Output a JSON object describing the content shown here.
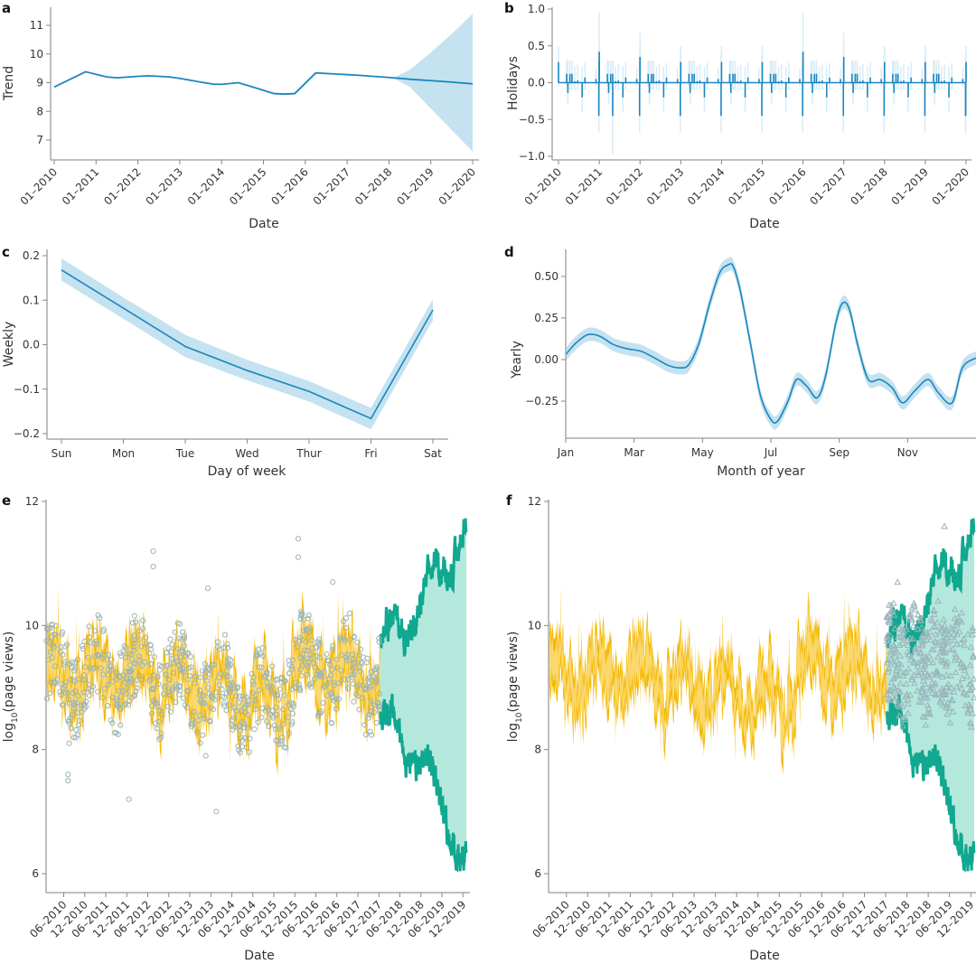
{
  "colors": {
    "component_line": "#1a86c0",
    "component_band": "#c5e2f0",
    "holiday_band": "#d8ecf6",
    "fit_edge": "#f5b800",
    "fit_band": "#fbdc7a",
    "forecast_edge": "#10a890",
    "forecast_band": "#b5e8dc",
    "observed_marker": "#9ab5bb"
  },
  "chart_data": [
    {
      "panel": "a",
      "type": "line",
      "title": "",
      "xlabel": "Date",
      "ylabel": "Trend",
      "x_ticks": [
        "01-2010",
        "01-2011",
        "01-2012",
        "01-2013",
        "01-2014",
        "01-2015",
        "01-2016",
        "01-2017",
        "01-2018",
        "01-2019",
        "01-2020"
      ],
      "y_ticks": [
        "7",
        "8",
        "9",
        "10",
        "11"
      ],
      "ylim": [
        6.3,
        11.6
      ],
      "xlim": [
        2010.0,
        2020.0
      ],
      "series": [
        {
          "name": "trend",
          "x": [
            2010.0,
            2010.75,
            2011.25,
            2011.5,
            2012.0,
            2012.25,
            2012.75,
            2013.0,
            2013.5,
            2013.8,
            2014.0,
            2014.4,
            2014.9,
            2015.25,
            2015.5,
            2015.75,
            2016.25,
            2016.75,
            2017.25,
            2018.0,
            2018.5,
            2019.0,
            2019.5,
            2020.0
          ],
          "y": [
            8.85,
            9.38,
            9.2,
            9.17,
            9.22,
            9.24,
            9.2,
            9.15,
            9.02,
            8.95,
            8.94,
            9.0,
            8.78,
            8.62,
            8.6,
            8.62,
            9.34,
            9.3,
            9.26,
            9.18,
            9.12,
            9.07,
            9.02,
            8.96
          ]
        }
      ],
      "uncertainty_band": {
        "x": [
          2018.1,
          2018.5,
          2019.0,
          2019.5,
          2020.0
        ],
        "lower": [
          9.16,
          8.85,
          8.1,
          7.35,
          6.6
        ],
        "upper": [
          9.16,
          9.45,
          10.05,
          10.7,
          11.4
        ]
      }
    },
    {
      "panel": "b",
      "type": "bar",
      "title": "",
      "xlabel": "Date",
      "ylabel": "Holidays",
      "x_ticks": [
        "01-2010",
        "01-2011",
        "01-2012",
        "01-2013",
        "01-2014",
        "01-2015",
        "01-2016",
        "01-2017",
        "01-2018",
        "01-2019",
        "01-2020"
      ],
      "y_ticks": [
        "-1.0",
        "-0.5",
        "0.0",
        "0.5",
        "1.0"
      ],
      "ylim": [
        -1.05,
        1.05
      ],
      "xlim": [
        2010.0,
        2020.0
      ],
      "yearly_pattern": {
        "offsets": [
          0.0,
          0.2,
          0.23,
          0.28,
          0.33,
          0.4,
          0.47,
          0.58,
          0.65,
          0.92,
          0.99
        ],
        "values": [
          0.28,
          0.12,
          -0.14,
          0.12,
          0.12,
          0.02,
          0.03,
          -0.2,
          0.07,
          0.05,
          -0.45
        ],
        "upper": [
          0.5,
          0.3,
          0.3,
          0.3,
          0.3,
          0.22,
          0.25,
          0.22,
          0.27,
          0.2,
          0.4
        ],
        "lower": [
          -0.05,
          -0.05,
          -0.3,
          -0.1,
          -0.1,
          -0.1,
          -0.1,
          -0.4,
          -0.1,
          -0.05,
          -0.68
        ]
      },
      "extra_spikes": [
        {
          "x": 2011.0,
          "value": 0.42,
          "upper": 0.95,
          "lower": -0.1
        },
        {
          "x": 2011.33,
          "value": -0.45,
          "upper": 0.3,
          "lower": -0.97
        },
        {
          "x": 2012.0,
          "value": 0.35,
          "upper": 0.68,
          "lower": 0.0
        },
        {
          "x": 2016.0,
          "value": 0.42,
          "upper": 0.95,
          "lower": -0.1
        },
        {
          "x": 2017.0,
          "value": 0.35,
          "upper": 0.68,
          "lower": 0.0
        }
      ]
    },
    {
      "panel": "c",
      "type": "line",
      "title": "",
      "xlabel": "Day of week",
      "ylabel": "Weekly",
      "categories": [
        "Sun",
        "Mon",
        "Tue",
        "Wed",
        "Thur",
        "Fri",
        "Sat"
      ],
      "y_ticks": [
        "-0.2",
        "-0.1",
        "0.0",
        "0.1",
        "0.2"
      ],
      "ylim": [
        -0.21,
        0.21
      ],
      "series": [
        {
          "name": "weekly",
          "values": [
            0.168,
            0.082,
            -0.004,
            -0.058,
            -0.105,
            -0.166,
            0.078
          ]
        }
      ],
      "uncertainty_band": {
        "lower": [
          0.144,
          0.058,
          -0.028,
          -0.08,
          -0.128,
          -0.19,
          0.055
        ],
        "upper": [
          0.194,
          0.106,
          0.022,
          -0.034,
          -0.082,
          -0.142,
          0.102
        ]
      }
    },
    {
      "panel": "d",
      "type": "line",
      "title": "",
      "xlabel": "Month of year",
      "ylabel": "Yearly",
      "x_ticks": [
        "Jan",
        "Mar",
        "May",
        "Jul",
        "Sep",
        "Nov"
      ],
      "y_ticks": [
        "-0.25",
        "0.00",
        "0.25",
        "0.50"
      ],
      "ylim": [
        -0.47,
        0.65
      ],
      "xlim": [
        0,
        12
      ],
      "series": [
        {
          "name": "yearly",
          "x": [
            0.0,
            0.3,
            0.65,
            1.0,
            1.4,
            1.8,
            2.2,
            2.6,
            3.0,
            3.35,
            3.6,
            3.9,
            4.2,
            4.5,
            4.75,
            4.9,
            5.1,
            5.4,
            5.7,
            6.0,
            6.2,
            6.5,
            6.75,
            7.05,
            7.35,
            7.6,
            7.9,
            8.1,
            8.3,
            8.55,
            8.85,
            9.2,
            9.55,
            9.85,
            10.2,
            10.6,
            10.9,
            11.3,
            11.6,
            12.0
          ],
          "y": [
            0.03,
            0.1,
            0.15,
            0.14,
            0.09,
            0.065,
            0.05,
            0.01,
            -0.035,
            -0.05,
            -0.03,
            0.1,
            0.33,
            0.52,
            0.57,
            0.56,
            0.42,
            0.1,
            -0.22,
            -0.36,
            -0.37,
            -0.25,
            -0.12,
            -0.16,
            -0.23,
            -0.1,
            0.22,
            0.34,
            0.3,
            0.08,
            -0.12,
            -0.12,
            -0.17,
            -0.26,
            -0.19,
            -0.12,
            -0.2,
            -0.26,
            -0.05,
            0.01
          ]
        }
      ],
      "band_halfwidth": 0.04
    },
    {
      "panel": "e",
      "type": "area",
      "title": "",
      "xlabel": "Date",
      "ylabel": "log10(page views)",
      "ylabel_parts": {
        "prefix": "log",
        "subscript": "10",
        "suffix": "(page views)"
      },
      "x_ticks": [
        "06-2010",
        "12-2010",
        "06-2011",
        "12-2011",
        "06-2012",
        "12-2012",
        "06-2013",
        "12-2013",
        "06-2014",
        "12-2014",
        "06-2015",
        "12-2015",
        "06-2016",
        "12-2016",
        "06-2017",
        "12-2017",
        "06-2018",
        "12-2018",
        "06-2019",
        "12-2019"
      ],
      "y_ticks": [
        "6",
        "8",
        "10",
        "12"
      ],
      "ylim": [
        5.7,
        12.1
      ],
      "xlim": [
        2010.0,
        2020.0
      ],
      "fit_period": [
        2010.0,
        2017.95
      ],
      "forecast_period": [
        2017.95,
        2020.0
      ],
      "fit_center": {
        "x": [
          2010.0,
          2010.5,
          2011.0,
          2011.5,
          2012.0,
          2012.5,
          2013.0,
          2013.5,
          2014.0,
          2014.5,
          2015.0,
          2015.5,
          2016.0,
          2016.5,
          2017.0,
          2017.5,
          2017.95
        ],
        "y": [
          9.1,
          9.2,
          9.15,
          9.25,
          9.2,
          9.2,
          9.1,
          9.0,
          9.0,
          8.85,
          8.75,
          8.7,
          9.35,
          9.3,
          9.25,
          9.2,
          9.15
        ]
      },
      "fit_halfwidth": 0.75,
      "forecast_upper": {
        "x": [
          2017.95,
          2018.5,
          2019.0,
          2019.5,
          2020.0
        ],
        "y": [
          9.8,
          10.0,
          10.4,
          11.0,
          11.6
        ]
      },
      "forecast_lower": {
        "x": [
          2017.95,
          2018.5,
          2019.0,
          2019.5,
          2020.0
        ],
        "y": [
          8.4,
          8.2,
          7.7,
          7.0,
          6.2
        ]
      },
      "observed_period": [
        2010.0,
        2017.95
      ],
      "observed_outliers": [
        {
          "x": 2010.52,
          "y": 7.6
        },
        {
          "x": 2010.52,
          "y": 7.5
        },
        {
          "x": 2010.55,
          "y": 8.1
        },
        {
          "x": 2011.97,
          "y": 7.2
        },
        {
          "x": 2012.55,
          "y": 11.2
        },
        {
          "x": 2012.55,
          "y": 10.95
        },
        {
          "x": 2013.8,
          "y": 7.9
        },
        {
          "x": 2014.05,
          "y": 7.0
        },
        {
          "x": 2013.85,
          "y": 10.6
        },
        {
          "x": 2016.0,
          "y": 11.4
        },
        {
          "x": 2016.0,
          "y": 11.1
        },
        {
          "x": 2016.82,
          "y": 10.7
        }
      ]
    },
    {
      "panel": "f",
      "type": "area",
      "title": "",
      "xlabel": "Date",
      "ylabel": "log10(page views)",
      "ylabel_parts": {
        "prefix": "log",
        "subscript": "10",
        "suffix": "(page views)"
      },
      "x_ticks": [
        "06-2010",
        "12-2010",
        "06-2011",
        "12-2011",
        "06-2012",
        "12-2012",
        "06-2013",
        "12-2013",
        "06-2014",
        "12-2014",
        "06-2015",
        "12-2015",
        "06-2016",
        "12-2016",
        "06-2017",
        "12-2017",
        "06-2018",
        "12-2018",
        "06-2019",
        "12-2019"
      ],
      "y_ticks": [
        "6",
        "8",
        "10",
        "12"
      ],
      "ylim": [
        5.7,
        12.1
      ],
      "xlim": [
        2010.0,
        2020.0
      ],
      "fit_period": [
        2010.0,
        2017.95
      ],
      "forecast_period": [
        2017.95,
        2020.0
      ],
      "observed_period": [
        2017.95,
        2020.0
      ],
      "observed_marker": "triangle",
      "observed_outliers": [
        {
          "x": 2019.3,
          "y": 11.6
        },
        {
          "x": 2018.2,
          "y": 10.7
        }
      ]
    }
  ],
  "panel_labels": [
    "a",
    "b",
    "c",
    "d",
    "e",
    "f"
  ]
}
